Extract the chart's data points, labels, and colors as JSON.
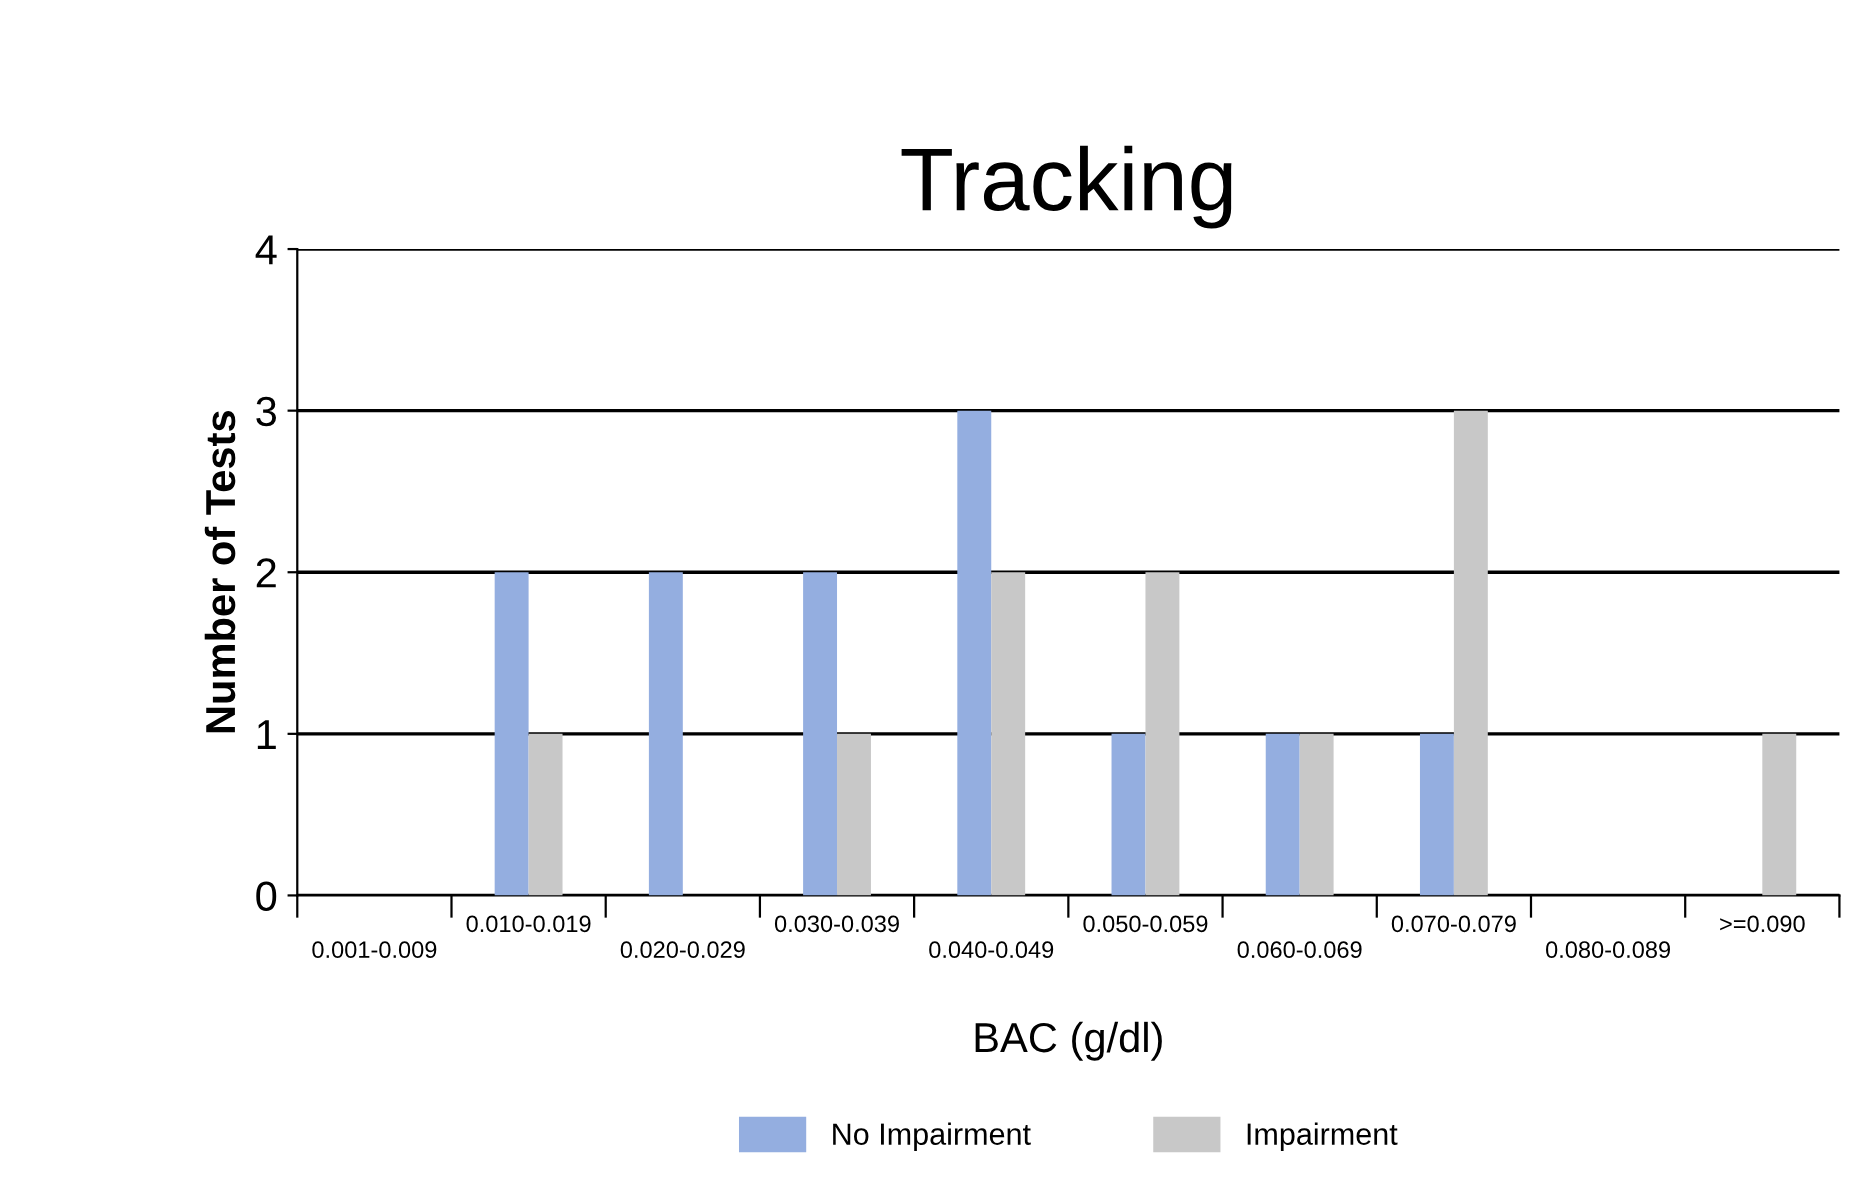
{
  "chart_data": {
    "type": "bar",
    "title": "Tracking",
    "xlabel": "BAC (g/dl)",
    "ylabel": "Number of Tests",
    "categories": [
      "0.001-0.009",
      "0.010-0.019",
      "0.020-0.029",
      "0.030-0.039",
      "0.040-0.049",
      "0.050-0.059",
      "0.060-0.069",
      "0.070-0.079",
      "0.080-0.089",
      ">=0.090"
    ],
    "series": [
      {
        "name": "No Impairment",
        "color": "#94aee0",
        "values": [
          0,
          2,
          2,
          2,
          3,
          1,
          1,
          1,
          0,
          0
        ]
      },
      {
        "name": "Impairment",
        "color": "#c8c8c8",
        "values": [
          0,
          1,
          0,
          1,
          2,
          2,
          1,
          3,
          0,
          1
        ]
      }
    ],
    "ylim": [
      0,
      4
    ],
    "yticks": [
      0,
      1,
      2,
      3,
      4
    ],
    "grid": "y",
    "legend": "bottom"
  }
}
